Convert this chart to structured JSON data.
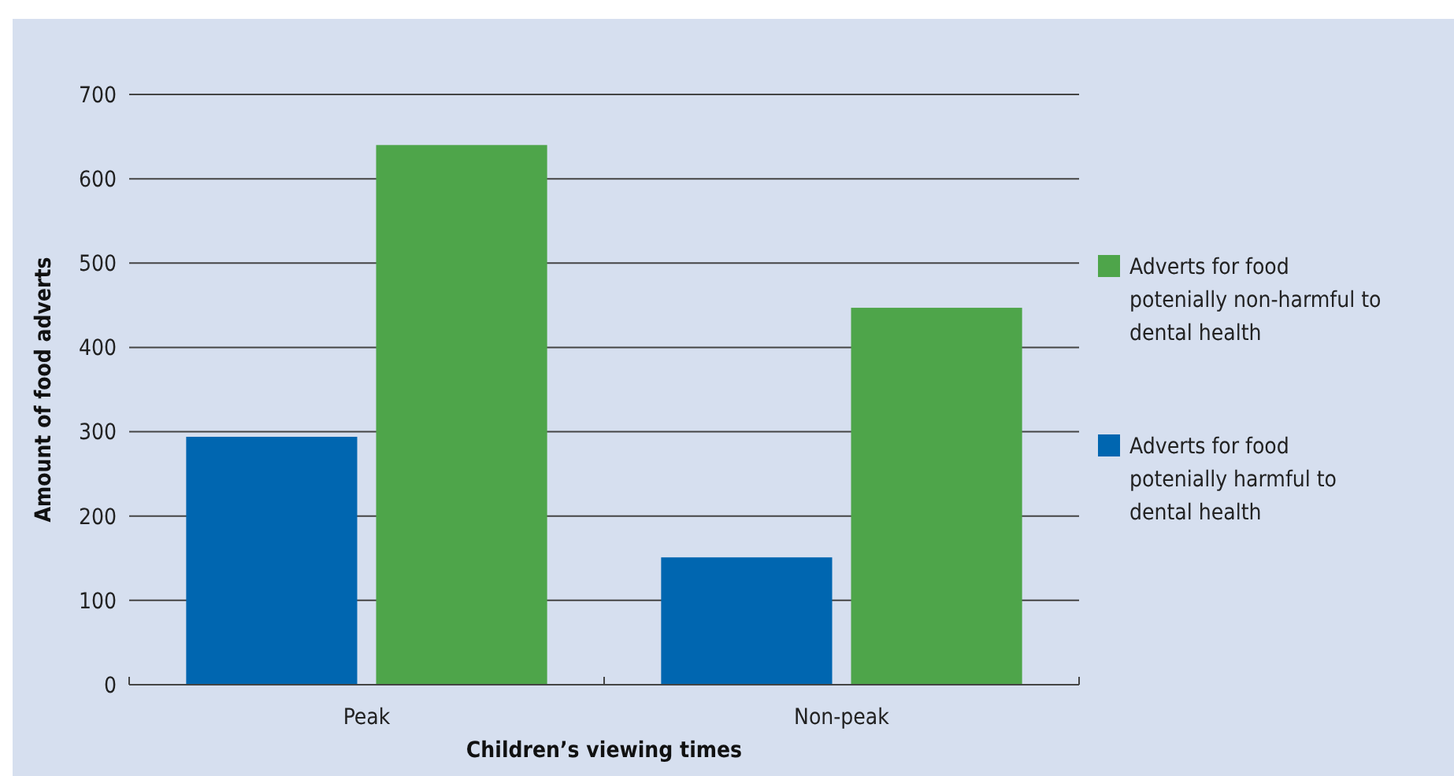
{
  "chart_data": {
    "type": "bar",
    "xlabel": "Children’s viewing times",
    "ylabel": "Amount of food adverts",
    "categories": [
      "Peak",
      "Non-peak"
    ],
    "series": [
      {
        "name": "Adverts for food potenially harmful to dental health",
        "color": "#0066b0",
        "values": [
          294,
          151
        ]
      },
      {
        "name": "Adverts for food potenially non-harmful to dental health",
        "color": "#4ea54a",
        "values": [
          640,
          447
        ]
      }
    ],
    "ylim": [
      0,
      700
    ],
    "yticks": [
      0,
      100,
      200,
      300,
      400,
      500,
      600,
      700
    ],
    "grid": "y",
    "legend": "right"
  }
}
